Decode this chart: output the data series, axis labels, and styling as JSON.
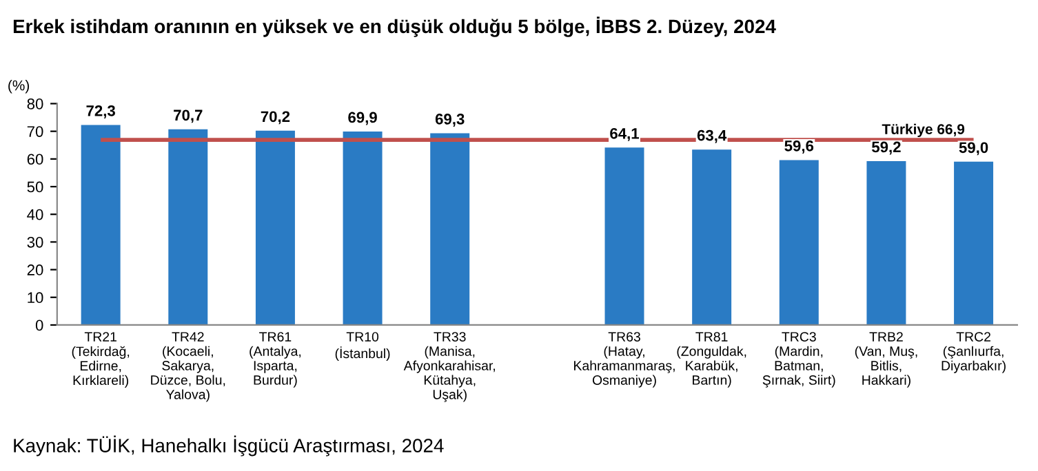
{
  "chart_data": {
    "type": "bar",
    "title": "Erkek istihdam oranının en yüksek ve en düşük olduğu 5 bölge, İBBS 2. Düzey, 2024",
    "ylabel": "(%)",
    "categories": [
      "TR21\n(Tekirdağ,\nEdirne,\nKırklareli)",
      "TR42\n(Kocaeli,\nSakarya,\nDüzce, Bolu,\nYalova)",
      "TR61\n(Antalya,\nIsparta,\nBurdur)",
      "TR10\n(İstanbul)",
      "TR33\n(Manisa,\nAfyonkarahisar,\nKütahya,\nUşak)",
      null,
      "TR63\n(Hatay,\nKahramanmaraş,\nOsmaniye)",
      "TR81\n(Zonguldak,\nKarabük,\nBartın)",
      "TRC3\n(Mardin,\nBatman,\nŞırnak, Siirt)",
      "TRB2\n(Van, Muş,\nBitlis,\nHakkari)",
      "TRC2\n(Şanlıurfa,\nDiyarbakır)"
    ],
    "values": [
      72.3,
      70.7,
      70.2,
      69.9,
      69.3,
      null,
      64.1,
      63.4,
      59.6,
      59.2,
      59.0
    ],
    "value_labels": [
      "72,3",
      "70,7",
      "70,2",
      "69,9",
      "69,3",
      null,
      "64,1",
      "63,4",
      "59,6",
      "59,2",
      "59,0"
    ],
    "color": "#2a7bc4",
    "ylim": [
      0,
      80
    ],
    "yticks": [
      0,
      10,
      20,
      30,
      40,
      50,
      60,
      70,
      80
    ],
    "ref_lines": [
      {
        "axis": "y",
        "value": 66.9,
        "label": "Türkiye 66,9",
        "color": "#c0504d"
      }
    ],
    "grid": false,
    "legend": false,
    "annotations": [
      "Kaynak: TÜİK, Hanehalkı İşgücü Araştırması, 2024"
    ]
  }
}
